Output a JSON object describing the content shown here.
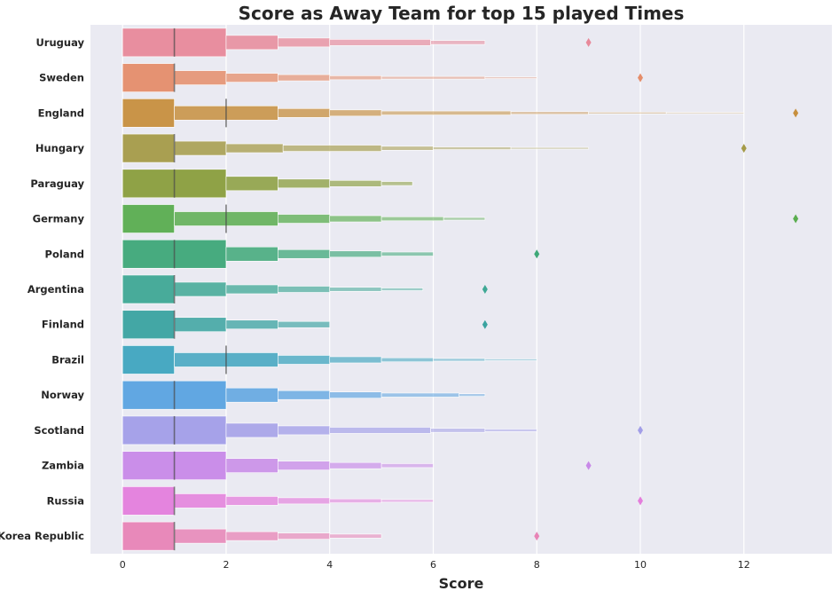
{
  "chart_data": {
    "type": "boxenplot",
    "title": "Score as Away Team for top 15 played Times",
    "xlabel": "Score",
    "ylabel": "",
    "xlim": [
      -0.62,
      13.7
    ],
    "x_ticks": [
      0,
      2,
      4,
      6,
      8,
      10,
      12
    ],
    "grid": true,
    "orientation": "horizontal",
    "categories": [
      "Uruguay",
      "Sweden",
      "England",
      "Hungary",
      "Paraguay",
      "Germany",
      "Poland",
      "Argentina",
      "Finland",
      "Brazil",
      "Norway",
      "Scotland",
      "Zambia",
      "Russia",
      "Korea Republic"
    ],
    "colors": [
      "#e8899a",
      "#e58d6a",
      "#c78f3e",
      "#a59b48",
      "#8a9e3c",
      "#5aad4f",
      "#3ea878",
      "#3fa895",
      "#3aa3a0",
      "#3fa5bf",
      "#5aa3e0",
      "#a29ee8",
      "#c889e8",
      "#e47edc",
      "#e884b6"
    ],
    "series": [
      {
        "boxes": [
          [
            0,
            2
          ],
          [
            2,
            3
          ],
          [
            3,
            4
          ],
          [
            4,
            5.95
          ],
          [
            5.95,
            7
          ]
        ],
        "median": 1,
        "outliers": [
          9
        ]
      },
      {
        "boxes": [
          [
            0,
            1
          ],
          [
            1,
            2
          ],
          [
            2,
            3
          ],
          [
            3,
            4
          ],
          [
            4,
            5
          ],
          [
            5,
            7
          ],
          [
            7,
            8
          ]
        ],
        "median": 1,
        "outliers": [
          10
        ]
      },
      {
        "boxes": [
          [
            0,
            1
          ],
          [
            1,
            3
          ],
          [
            3,
            4
          ],
          [
            4,
            5
          ],
          [
            5,
            7.5
          ],
          [
            7.5,
            9
          ],
          [
            9,
            10.5
          ],
          [
            10.5,
            12
          ]
        ],
        "median": 2,
        "outliers": [
          13
        ]
      },
      {
        "boxes": [
          [
            0,
            1
          ],
          [
            1,
            2
          ],
          [
            2,
            3.1
          ],
          [
            3.1,
            5
          ],
          [
            5,
            6
          ],
          [
            6,
            7.5
          ],
          [
            7.5,
            9
          ]
        ],
        "median": 1,
        "outliers": [
          12
        ]
      },
      {
        "boxes": [
          [
            0,
            2
          ],
          [
            2,
            3
          ],
          [
            3,
            4
          ],
          [
            4,
            5
          ],
          [
            5,
            5.6
          ]
        ],
        "median": 1,
        "outliers": []
      },
      {
        "boxes": [
          [
            0,
            1
          ],
          [
            1,
            3
          ],
          [
            3,
            4
          ],
          [
            4,
            5
          ],
          [
            5,
            6.2
          ],
          [
            6.2,
            7
          ]
        ],
        "median": 2,
        "outliers": [
          13
        ]
      },
      {
        "boxes": [
          [
            0,
            2
          ],
          [
            2,
            3
          ],
          [
            3,
            4
          ],
          [
            4,
            5
          ],
          [
            5,
            6
          ]
        ],
        "median": 1,
        "outliers": [
          8
        ]
      },
      {
        "boxes": [
          [
            0,
            1
          ],
          [
            1,
            2
          ],
          [
            2,
            3
          ],
          [
            3,
            4
          ],
          [
            4,
            5
          ],
          [
            5,
            5.8
          ]
        ],
        "median": 1,
        "outliers": [
          7
        ]
      },
      {
        "boxes": [
          [
            0,
            1
          ],
          [
            1,
            2
          ],
          [
            2,
            3
          ],
          [
            3,
            4
          ]
        ],
        "median": 1,
        "outliers": [
          7
        ]
      },
      {
        "boxes": [
          [
            0,
            1
          ],
          [
            1,
            3
          ],
          [
            3,
            4
          ],
          [
            4,
            5
          ],
          [
            5,
            6
          ],
          [
            6,
            7
          ],
          [
            7,
            8
          ]
        ],
        "median": 2,
        "outliers": []
      },
      {
        "boxes": [
          [
            0,
            2
          ],
          [
            2,
            3
          ],
          [
            3,
            4
          ],
          [
            4,
            5
          ],
          [
            5,
            6.5
          ],
          [
            6.5,
            7
          ]
        ],
        "median": 1,
        "outliers": []
      },
      {
        "boxes": [
          [
            0,
            2
          ],
          [
            2,
            3
          ],
          [
            3,
            4
          ],
          [
            4,
            5.95
          ],
          [
            5.95,
            7
          ],
          [
            7,
            8
          ]
        ],
        "median": 1,
        "outliers": [
          10
        ]
      },
      {
        "boxes": [
          [
            0,
            2
          ],
          [
            2,
            3
          ],
          [
            3,
            4
          ],
          [
            4,
            5
          ],
          [
            5,
            6
          ]
        ],
        "median": 1,
        "outliers": [
          9
        ]
      },
      {
        "boxes": [
          [
            0,
            1
          ],
          [
            1,
            2
          ],
          [
            2,
            3
          ],
          [
            3,
            4
          ],
          [
            4,
            5
          ],
          [
            5,
            6
          ]
        ],
        "median": 1,
        "outliers": [
          10
        ]
      },
      {
        "boxes": [
          [
            0,
            1
          ],
          [
            1,
            2
          ],
          [
            2,
            3
          ],
          [
            3,
            4
          ],
          [
            4,
            5
          ]
        ],
        "median": 1,
        "outliers": [
          8
        ]
      }
    ]
  }
}
